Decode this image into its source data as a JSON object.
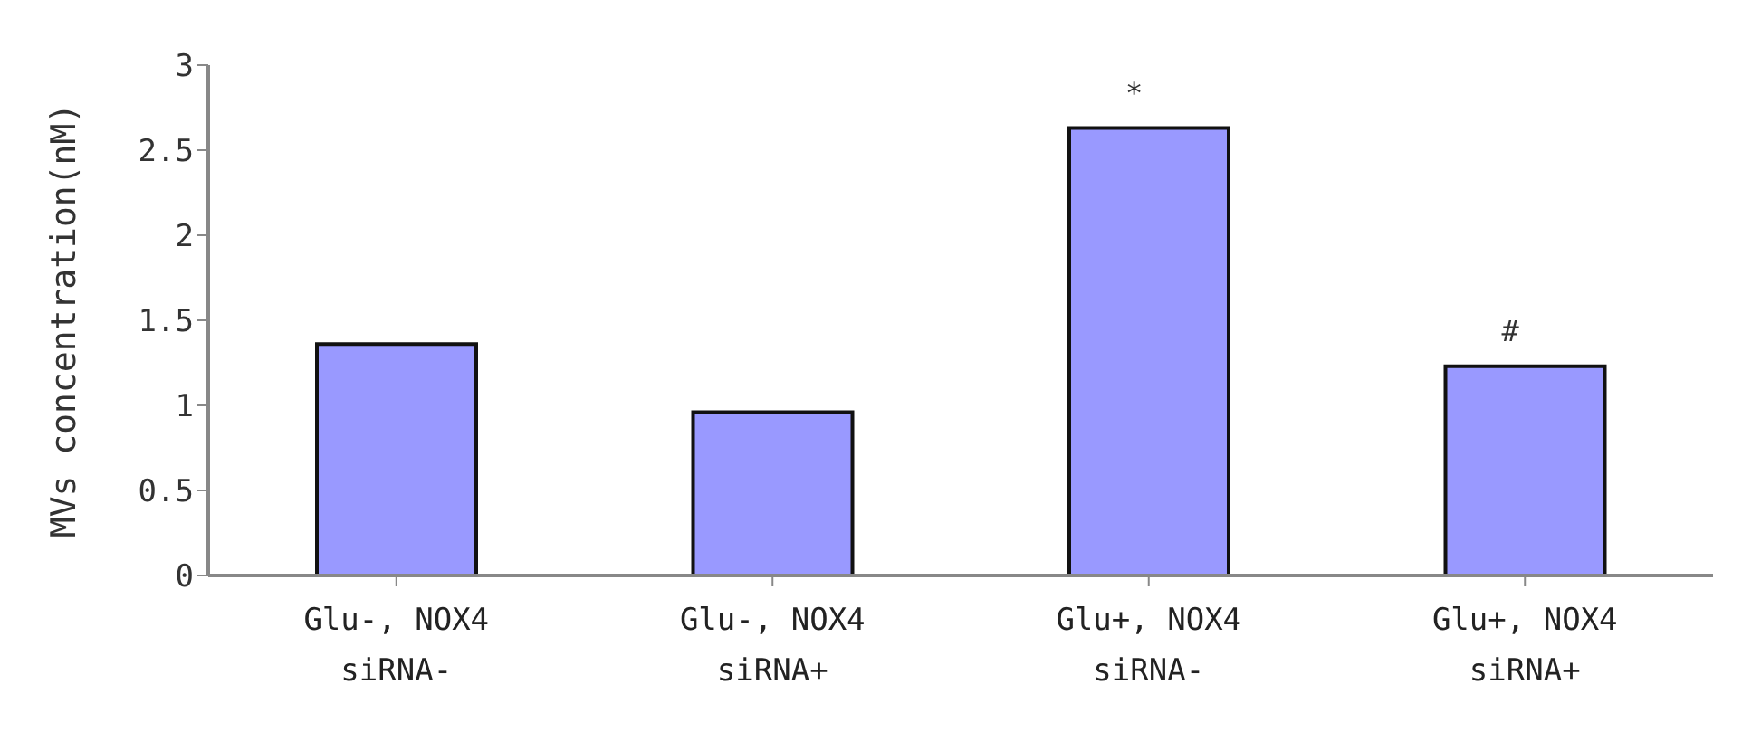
{
  "chart_data": {
    "type": "bar",
    "ylabel": "MVs concentration(nM)",
    "categories": [
      "Glu-, NOX4 siRNA-",
      "Glu-, NOX4 siRNA+",
      "Glu+, NOX4 siRNA-",
      "Glu+, NOX4 siRNA+"
    ],
    "values": [
      1.36,
      0.96,
      2.63,
      1.23
    ],
    "color": "#9999ff",
    "ylim": [
      0,
      3
    ],
    "yticks": [
      0,
      0.5,
      1,
      1.5,
      2,
      2.5,
      3
    ],
    "grid": false,
    "legend": false,
    "annotations": [
      {
        "text": "*",
        "x": "Glu+, NOX4 siRNA-",
        "y": 2.63
      },
      {
        "text": "#",
        "x": "Glu+, NOX4 siRNA+",
        "y": 1.23
      }
    ]
  }
}
